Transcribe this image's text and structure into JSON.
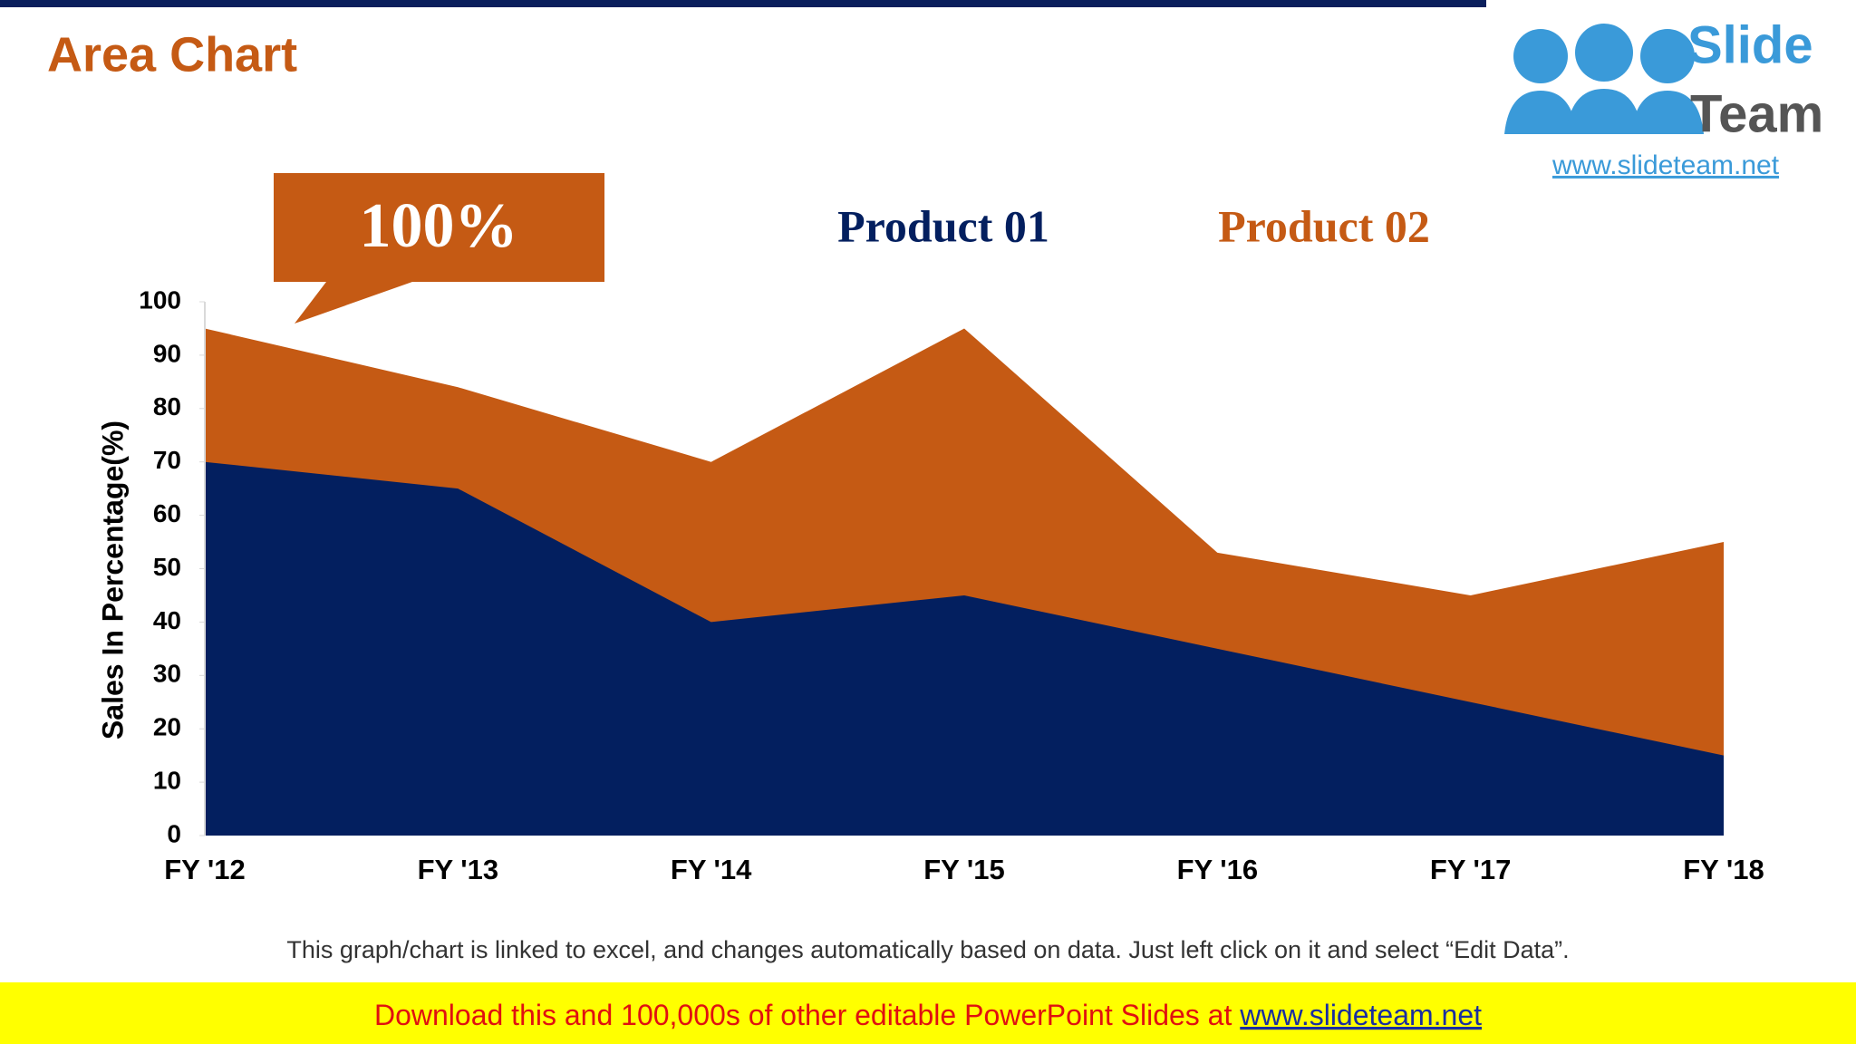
{
  "chart_data": {
    "type": "area",
    "title": "Area Chart",
    "annotation": "100%",
    "categories": [
      "FY '12",
      "FY '13",
      "FY '14",
      "FY '15",
      "FY '16",
      "FY '17",
      "FY '18"
    ],
    "series": [
      {
        "name": "Product 02",
        "color": "#c55a14",
        "values": [
          95,
          84,
          70,
          95,
          53,
          45,
          55
        ]
      },
      {
        "name": "Product 01",
        "color": "#031f5f",
        "values": [
          70,
          65,
          40,
          45,
          35,
          25,
          15
        ]
      }
    ],
    "ylabel": "Sales In Percentage(%)",
    "ylim": [
      0,
      100
    ],
    "yticks": [
      0,
      10,
      20,
      30,
      40,
      50,
      60,
      70,
      80,
      90,
      100
    ],
    "grid": false,
    "note": "This graph/chart is linked to excel, and changes automatically based on data. Just left click on it and select “Edit Data”."
  },
  "banner": {
    "text": "Download this and 100,000s of other editable PowerPoint Slides at ",
    "link": "www.slideteam.net"
  },
  "logo": {
    "line1": "Slide",
    "line2": "Team",
    "url": "www.slideteam.net"
  }
}
